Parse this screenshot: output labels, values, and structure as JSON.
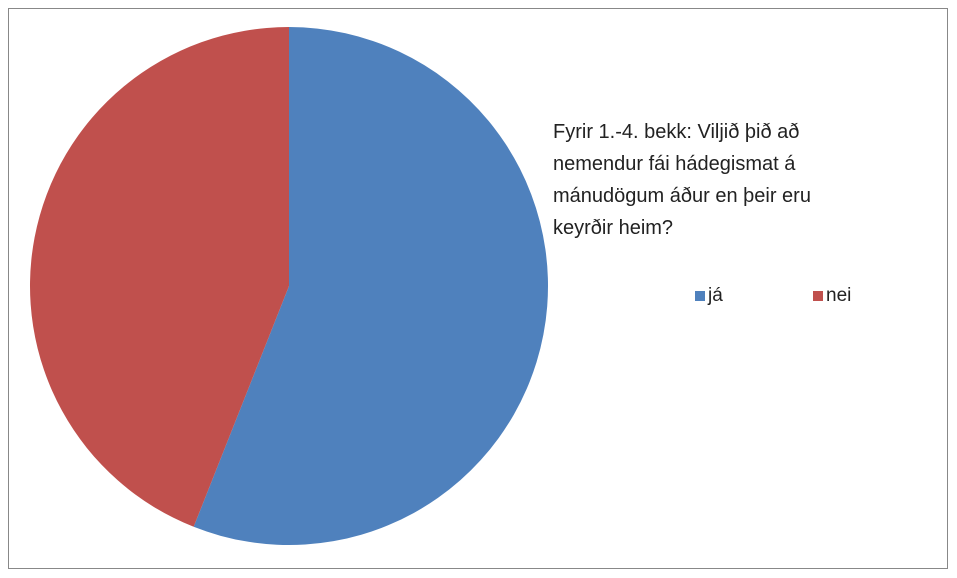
{
  "chart_data": {
    "type": "pie",
    "title": "Fyrir 1.-4. bekk: Viljið þið að nemendur fái hádegismat á mánudögum áður en þeir eru keyrðir heim?",
    "categories": [
      "já",
      "nei"
    ],
    "values": [
      56,
      44
    ],
    "colors": [
      "#4f81bd",
      "#c0504d"
    ],
    "legend": "right"
  }
}
